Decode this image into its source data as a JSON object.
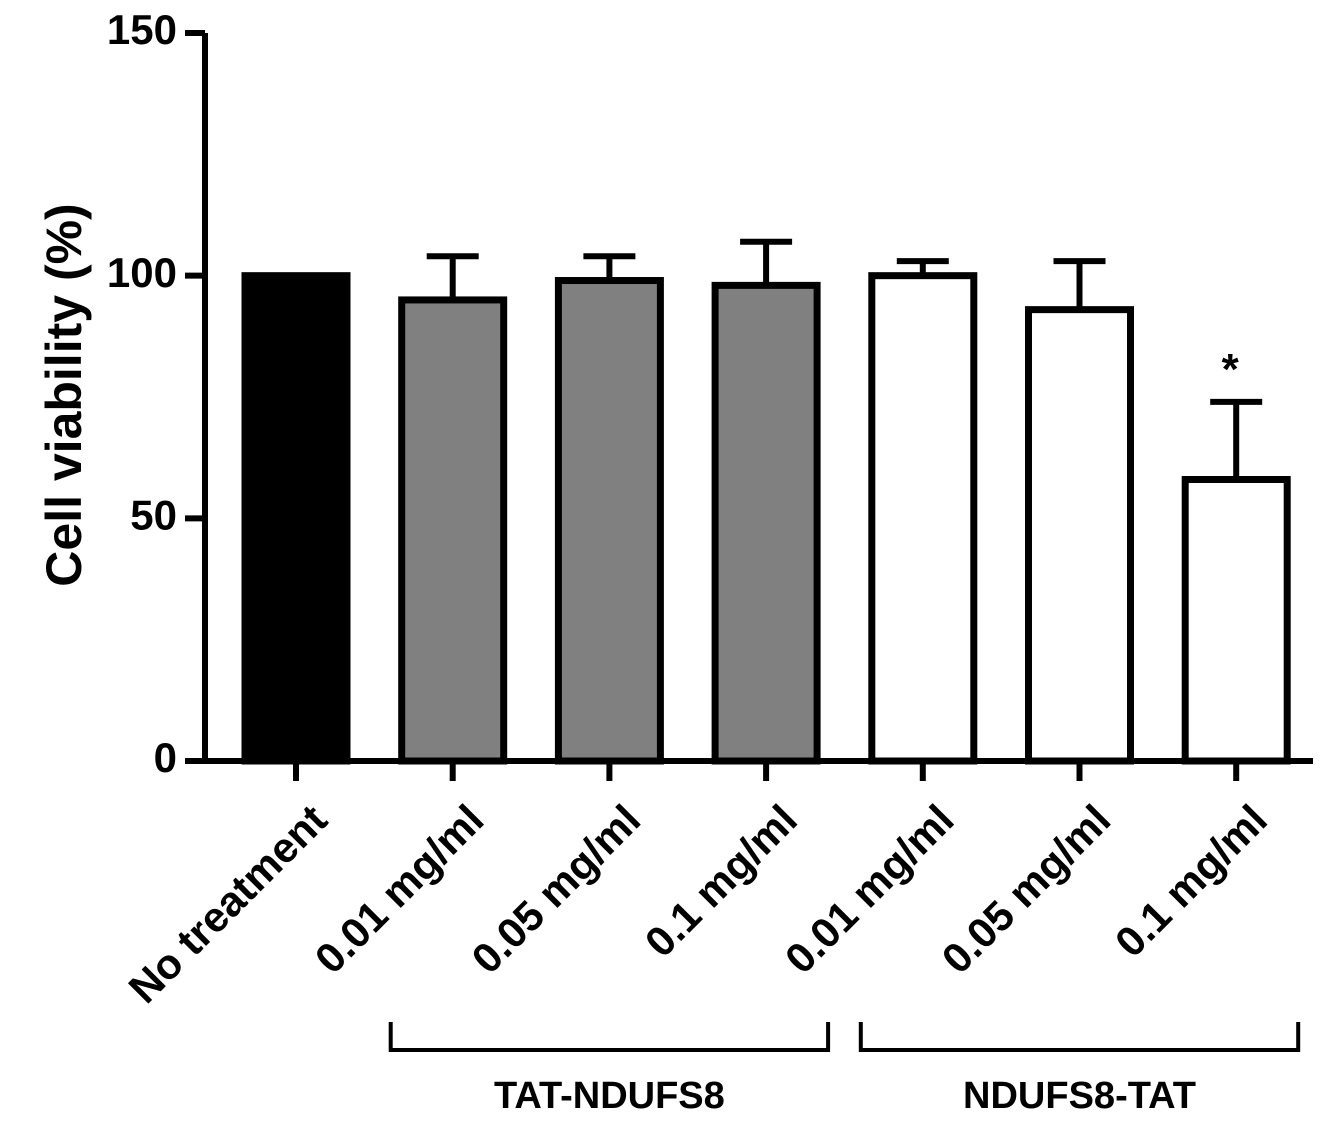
{
  "chart_data": {
    "type": "bar",
    "title": "",
    "ylabel": "Cell viability (%)",
    "xlabel": "",
    "ylim": [
      0,
      150
    ],
    "yticks": [
      0,
      50,
      100,
      150
    ],
    "categories": [
      "No treatment",
      "0.01 mg/ml",
      "0.05 mg/ml",
      "0.1 mg/ml",
      "0.01 mg/ml",
      "0.05 mg/ml",
      "0.1 mg/ml"
    ],
    "values": [
      100,
      95,
      99,
      98,
      100,
      93,
      58
    ],
    "errors": [
      0,
      9,
      5,
      9,
      3,
      10,
      16
    ],
    "bar_colors": [
      "#000000",
      "#808080",
      "#808080",
      "#808080",
      "#ffffff",
      "#ffffff",
      "#ffffff"
    ],
    "annotations": [
      {
        "category_index": 6,
        "text": "*"
      }
    ],
    "groups": [
      {
        "label": "TAT-NDUFS8",
        "category_indices": [
          1,
          2,
          3
        ]
      },
      {
        "label": "NDUFS8-TAT",
        "category_indices": [
          4,
          5,
          6
        ]
      }
    ]
  }
}
